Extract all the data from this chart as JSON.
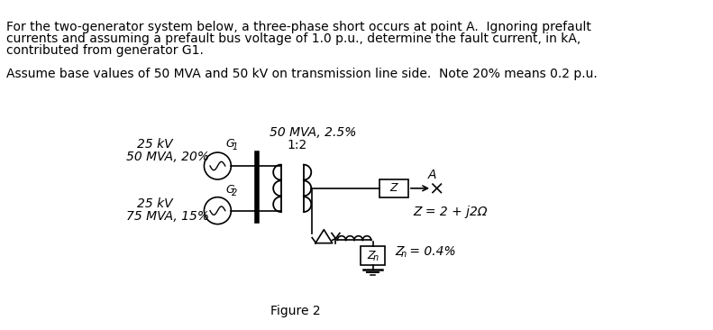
{
  "background_color": "#ffffff",
  "text_lines": [
    "For the two-generator system below, a three-phase short occurs at point A.  Ignoring prefault",
    "currents and assuming a prefault bus voltage of 1.0 p.u., determine the fault current, in kA,",
    "contributed from generator G1.",
    "",
    "Assume base values of 50 MVA and 50 kV on transmission line side.  Note 20% means 0.2 p.u."
  ],
  "figure_caption": "Figure 2",
  "label_25kV_top": "25 kV",
  "label_50MVA": "50 MVA, 20%",
  "label_G1": "G",
  "label_G1_sub": "1",
  "label_G2": "G",
  "label_G2_sub": "2",
  "label_25kV_bot": "25 kV",
  "label_75MVA": "75 MVA, 15%",
  "label_transformer": "50 MVA, 2.5%",
  "label_ratio": "1:2",
  "label_Z": "Z",
  "label_A": "A",
  "label_Zeq": "Z = 2 + j2Ω",
  "label_Zn": "Z",
  "label_Zn_sub": "n",
  "label_Zn_eq": "Z",
  "label_Zn_eq_sub": "n",
  "label_Zn_val": " = 0.4%",
  "figsize": [
    7.91,
    3.66
  ],
  "dpi": 100
}
